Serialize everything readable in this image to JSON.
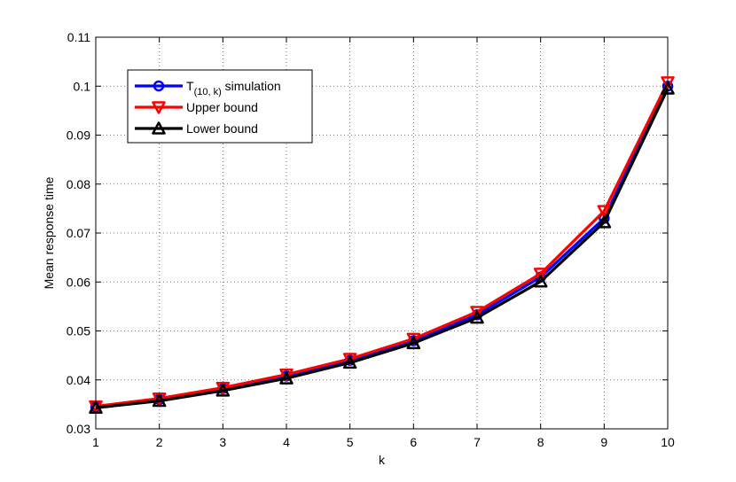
{
  "chart_data": {
    "type": "line",
    "title": "",
    "xlabel": "k",
    "ylabel": "Mean response time",
    "xlim": [
      1,
      10
    ],
    "ylim": [
      0.03,
      0.11
    ],
    "xticks": [
      1,
      2,
      3,
      4,
      5,
      6,
      7,
      8,
      9,
      10
    ],
    "xtick_labels": [
      "1",
      "2",
      "3",
      "4",
      "5",
      "6",
      "7",
      "8",
      "9",
      "10"
    ],
    "yticks": [
      0.03,
      0.04,
      0.05,
      0.06,
      0.07,
      0.08,
      0.09,
      0.1,
      0.11
    ],
    "ytick_labels": [
      "0.03",
      "0.04",
      "0.05",
      "0.06",
      "0.07",
      "0.08",
      "0.09",
      "0.1",
      "0.11"
    ],
    "grid": true,
    "legend_position": "top-left",
    "x": [
      1,
      2,
      3,
      4,
      5,
      6,
      7,
      8,
      9,
      10
    ],
    "series": [
      {
        "name": "T(10, k) simulation",
        "legend_main": "T",
        "legend_sub": "(10, k)",
        "legend_rest": " simulation",
        "color": "#0000ff",
        "marker": "circle",
        "values": [
          0.0345,
          0.036,
          0.0382,
          0.0408,
          0.044,
          0.048,
          0.0533,
          0.061,
          0.073,
          0.1
        ]
      },
      {
        "name": "Upper bound",
        "color": "#ff0000",
        "marker": "triangle-down",
        "values": [
          0.0346,
          0.0362,
          0.0384,
          0.0411,
          0.0443,
          0.0484,
          0.0539,
          0.0617,
          0.0745,
          0.1008
        ]
      },
      {
        "name": "Lower bound",
        "color": "#000000",
        "marker": "triangle-up",
        "values": [
          0.0343,
          0.0357,
          0.0378,
          0.0403,
          0.0435,
          0.0475,
          0.0527,
          0.0601,
          0.0722,
          0.0995
        ]
      }
    ]
  }
}
